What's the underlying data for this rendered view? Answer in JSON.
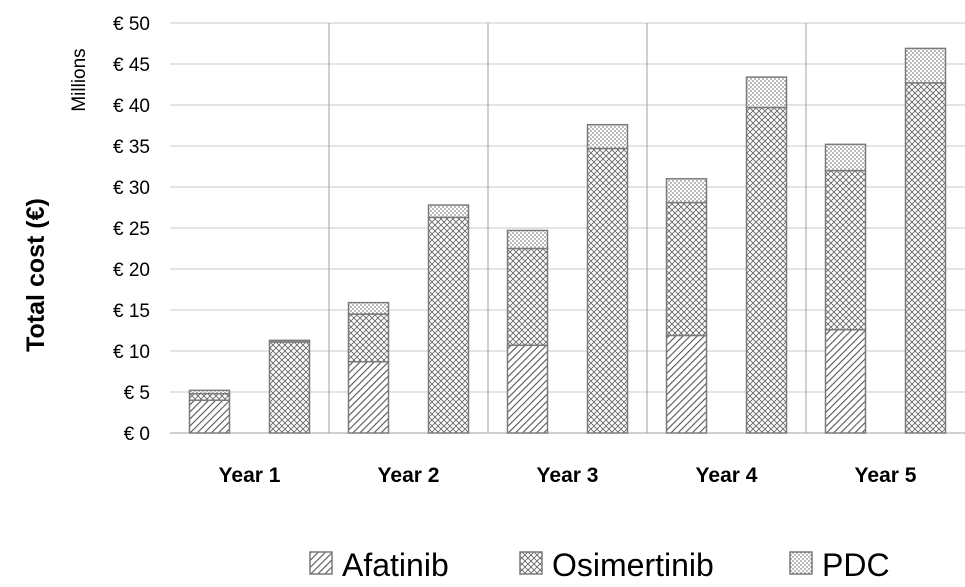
{
  "chart_data": {
    "type": "bar",
    "stacked": true,
    "categories": [
      "Year 1",
      "Year 2",
      "Year 3",
      "Year 4",
      "Year 5"
    ],
    "groups": [
      "A",
      "B"
    ],
    "series": [
      {
        "name": "Afatinib",
        "pattern": "diagonal-hatch",
        "values": {
          "A": [
            4.0,
            8.7,
            10.7,
            11.9,
            12.6
          ],
          "B": [
            0,
            0,
            0,
            0,
            0
          ]
        }
      },
      {
        "name": "Osimertinib",
        "pattern": "crosshatch",
        "values": {
          "A": [
            0.8,
            5.8,
            11.8,
            16.2,
            19.4
          ],
          "B": [
            11.1,
            26.3,
            34.7,
            39.7,
            42.7
          ]
        }
      },
      {
        "name": "PDC",
        "pattern": "dotted",
        "values": {
          "A": [
            0.4,
            1.4,
            2.2,
            2.9,
            3.2
          ],
          "B": [
            0.2,
            1.5,
            2.9,
            3.7,
            4.2
          ]
        }
      }
    ],
    "ylabel": "Total cost (€)",
    "units_label": "Millions",
    "ylim": [
      0,
      50
    ],
    "yticks": [
      0,
      5,
      10,
      15,
      20,
      25,
      30,
      35,
      40,
      45,
      50
    ],
    "ytick_prefix": "€ ",
    "grid": true,
    "legend_position": "bottom",
    "colors": {
      "bar_stroke": "#7a7a7a",
      "hatch": "#555555",
      "grid": "#c8c8c8",
      "axis": "#a0a0a0"
    }
  }
}
